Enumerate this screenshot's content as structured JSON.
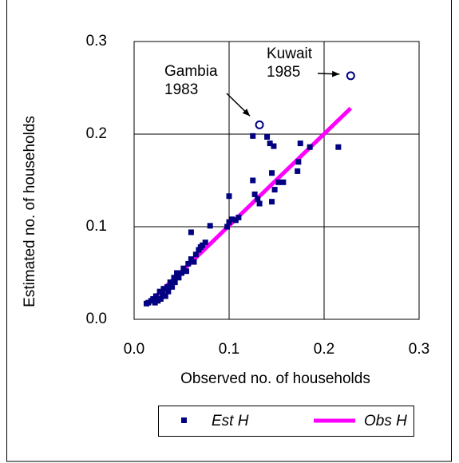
{
  "chart_data": {
    "type": "scatter",
    "x_label": "Observed no. of households",
    "y_label": "Estimated no. of households",
    "xlim": [
      0,
      0.3
    ],
    "ylim": [
      0,
      0.3
    ],
    "xticks": [
      {
        "value": 0,
        "label": "0.0"
      },
      0.1,
      0.2,
      0.3
    ],
    "yticks": [
      {
        "value": 0,
        "label": "0.0"
      },
      0.1,
      0.2,
      0.3
    ],
    "grid": true,
    "series": [
      {
        "name": "Est H",
        "type": "scatter",
        "color": "#000080",
        "x": [
          0.013,
          0.015,
          0.018,
          0.02,
          0.022,
          0.023,
          0.025,
          0.027,
          0.028,
          0.03,
          0.031,
          0.033,
          0.035,
          0.036,
          0.038,
          0.04,
          0.042,
          0.043,
          0.045,
          0.047,
          0.05,
          0.052,
          0.055,
          0.057,
          0.06,
          0.06,
          0.063,
          0.065,
          0.068,
          0.07,
          0.072,
          0.075,
          0.08,
          0.098,
          0.1,
          0.1,
          0.103,
          0.107,
          0.11,
          0.125,
          0.125,
          0.127,
          0.13,
          0.132,
          0.14,
          0.143,
          0.145,
          0.147,
          0.145,
          0.148,
          0.152,
          0.157,
          0.172,
          0.173,
          0.175,
          0.185,
          0.215
        ],
        "values": [
          0.017,
          0.018,
          0.02,
          0.022,
          0.018,
          0.025,
          0.02,
          0.03,
          0.022,
          0.027,
          0.033,
          0.025,
          0.035,
          0.03,
          0.04,
          0.035,
          0.045,
          0.04,
          0.05,
          0.045,
          0.05,
          0.055,
          0.052,
          0.06,
          0.065,
          0.094,
          0.062,
          0.07,
          0.075,
          0.078,
          0.08,
          0.083,
          0.101,
          0.1,
          0.105,
          0.133,
          0.108,
          0.107,
          0.11,
          0.198,
          0.15,
          0.135,
          0.13,
          0.125,
          0.197,
          0.19,
          0.158,
          0.187,
          0.127,
          0.14,
          0.148,
          0.148,
          0.16,
          0.17,
          0.19,
          0.186,
          0.186
        ]
      },
      {
        "name": "Obs H",
        "type": "line",
        "color": "#ff00ff",
        "x": [
          0.013,
          0.228
        ],
        "values": [
          0.015,
          0.228
        ]
      }
    ],
    "annotations": [
      {
        "lines": [
          "Gambia",
          "1983"
        ],
        "x": 0.132,
        "y": 0.21
      },
      {
        "lines": [
          "Kuwait",
          "1985"
        ],
        "x": 0.228,
        "y": 0.263
      }
    ]
  }
}
